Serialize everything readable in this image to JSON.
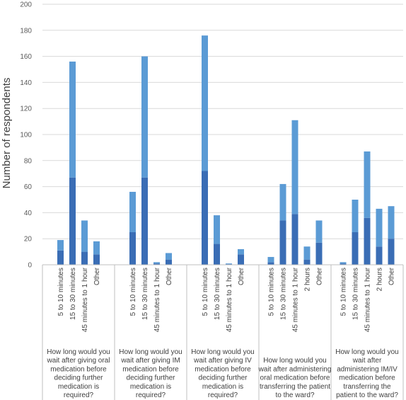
{
  "chart_data": {
    "type": "bar",
    "stacked": true,
    "ylabel": "Number of respondents",
    "xlabel": "",
    "ylim": [
      0,
      200
    ],
    "y_ticks": [
      0,
      20,
      40,
      60,
      80,
      100,
      120,
      140,
      160,
      180,
      200
    ],
    "grid": true,
    "legend": "none",
    "colors": {
      "bottom": "#3a6db5",
      "top": "#5b9bd5",
      "grid": "#d9d9d9",
      "axis": "#bfbfbf"
    },
    "groups": [
      {
        "label_lines": [
          "How long would you",
          "wait after giving oral",
          "medication before",
          "deciding further",
          "medication is",
          "required?"
        ],
        "categories": [
          "5 to 10 minutes",
          "15 to 30 minutes",
          "45 minutes to 1 hour",
          "Other"
        ],
        "bottom": [
          11,
          67,
          10,
          8
        ],
        "top": [
          8,
          89,
          24,
          10
        ]
      },
      {
        "label_lines": [
          "How long would you",
          "wait after giving IM",
          "medication before",
          "deciding further",
          "medication is",
          "required?"
        ],
        "categories": [
          "5 to 10 minutes",
          "15 to 30 minutes",
          "45 minutes to 1 hour",
          "Other"
        ],
        "bottom": [
          25,
          67,
          1,
          4
        ],
        "top": [
          31,
          93,
          1,
          5
        ]
      },
      {
        "label_lines": [
          "How long would you",
          "wait after giving IV",
          "medication before",
          "deciding further",
          "medication is",
          "required?"
        ],
        "categories": [
          "5 to 10 minutes",
          "15 to 30 minutes",
          "45 minutes to 1 hour",
          "Other"
        ],
        "bottom": [
          72,
          16,
          0.5,
          8
        ],
        "top": [
          104,
          22,
          0.5,
          4
        ]
      },
      {
        "label_lines": [
          "How long would you",
          "wait after administering",
          "oral medication before",
          "transferring the patient",
          "to the ward?"
        ],
        "categories": [
          "5 to 10 minutes",
          "15 to 30 minutes",
          "45 minutes to 1 hour",
          "2 hours",
          "Other"
        ],
        "bottom": [
          2,
          34,
          39,
          4,
          17
        ],
        "top": [
          4,
          28,
          72,
          10,
          17
        ]
      },
      {
        "label_lines": [
          "How long would you",
          "wait after",
          "administering IM/IV",
          "medication before",
          "transferring the",
          "patient to the ward?"
        ],
        "categories": [
          "5 to 10 minutes",
          "15 to 30 minutes",
          "45 minutes to 1 hour",
          "2 hours",
          "Other"
        ],
        "bottom": [
          1,
          25,
          36,
          14,
          20
        ],
        "top": [
          1,
          25,
          51,
          29,
          25
        ]
      }
    ]
  }
}
